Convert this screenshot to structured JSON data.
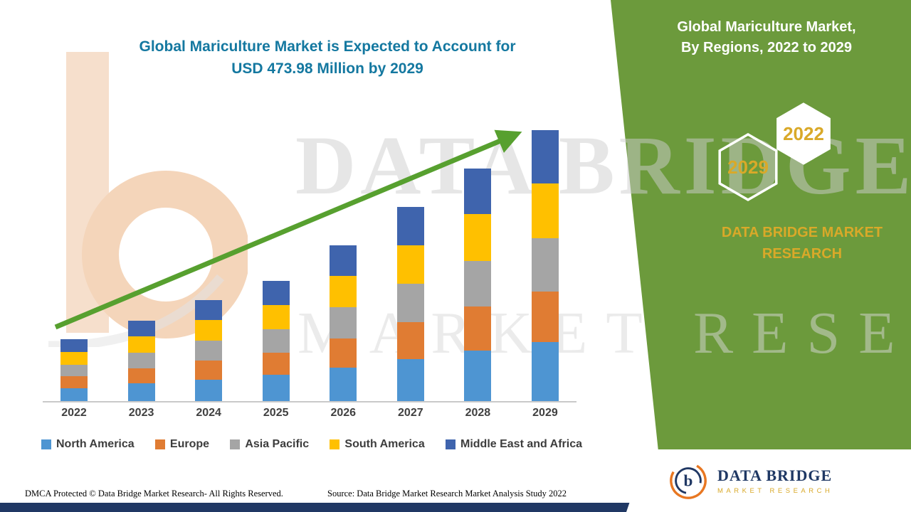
{
  "header": {
    "title_line1": "Global Mariculture Market is Expected to Account for",
    "title_line2": "USD 473.98 Million by 2029"
  },
  "chart_data": {
    "type": "bar",
    "stacked": true,
    "title": "Global Mariculture Market is Expected to Account for USD 473.98 Million by 2029",
    "xlabel": "",
    "ylabel": "",
    "unit": "USD Million",
    "categories": [
      "2022",
      "2023",
      "2024",
      "2025",
      "2026",
      "2027",
      "2028",
      "2029"
    ],
    "series": [
      {
        "name": "North America",
        "color": "#4E95D2",
        "values": [
          23,
          31,
          38,
          46,
          59,
          74,
          88,
          103
        ]
      },
      {
        "name": "Europe",
        "color": "#E07C33",
        "values": [
          20,
          26,
          33,
          39,
          51,
          64,
          77,
          89
        ]
      },
      {
        "name": "Asia Pacific",
        "color": "#A5A5A5",
        "values": [
          21,
          28,
          35,
          41,
          54,
          67,
          80,
          93
        ]
      },
      {
        "name": "South America",
        "color": "#FFC000",
        "values": [
          22,
          28,
          36,
          42,
          55,
          68,
          82,
          96
        ]
      },
      {
        "name": "Middle East and Africa",
        "color": "#3F64AD",
        "values": [
          22,
          28,
          35,
          42,
          54,
          67,
          80,
          93
        ]
      }
    ],
    "totals_estimated": [
      108,
      141,
      177,
      210,
      273,
      340,
      407,
      474
    ],
    "final_year_value_label": "USD 473.98 Million by 2029",
    "ylim": [
      0,
      474
    ],
    "grid": false,
    "legend_position": "bottom",
    "annotations": {
      "trend": "upward green arrow across bars"
    }
  },
  "side_panel": {
    "title_line1": "Global Mariculture Market,",
    "title_line2": "By Regions, 2022 to 2029",
    "hexagons": [
      {
        "label": "2029"
      },
      {
        "label": "2022"
      }
    ],
    "brand_line1": "DATA BRIDGE MARKET",
    "brand_line2": "RESEARCH"
  },
  "watermark": {
    "line1": "DATA BRIDGE",
    "line2": "MARKET RESEARCH"
  },
  "footer": {
    "dmca": "DMCA Protected © Data Bridge Market Research- All Rights Reserved.",
    "source": "Source: Data Bridge Market Research Market Analysis Study 2022"
  },
  "logo": {
    "monogram": "b",
    "name": "DATA BRIDGE",
    "tagline": "MARKET RESEARCH"
  },
  "colors": {
    "green_panel": "#6C9A3C",
    "arrow_green": "#57A02F",
    "gold": "#D9A929",
    "title_teal": "#1478A0",
    "navy": "#203864"
  }
}
